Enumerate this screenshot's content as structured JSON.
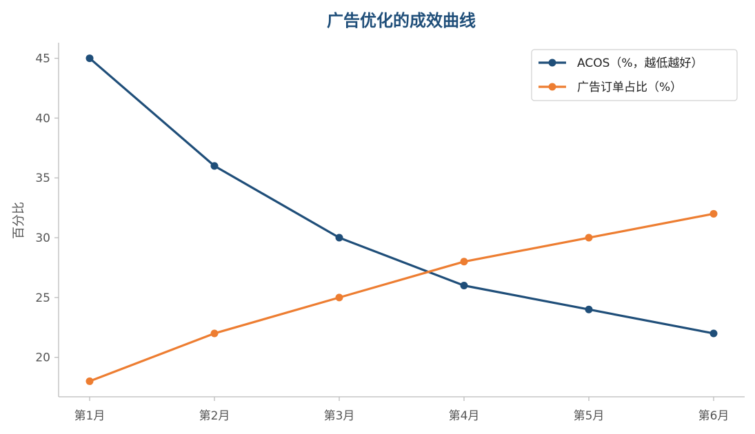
{
  "chart_data": {
    "type": "line",
    "title": "广告优化的成效曲线",
    "ylabel": "百分比",
    "xlabel": "",
    "categories": [
      "第1月",
      "第2月",
      "第3月",
      "第4月",
      "第5月",
      "第6月"
    ],
    "ylim": [
      16.7,
      46.3
    ],
    "yticks": [
      20,
      25,
      30,
      35,
      40,
      45
    ],
    "grid": false,
    "legend_position": "top-right",
    "series": [
      {
        "name": "ACOS（%，越低越好）",
        "values": [
          45,
          36,
          30,
          26,
          24,
          22
        ],
        "color": "#1f4e79"
      },
      {
        "name": "广告订单占比（%）",
        "values": [
          18,
          22,
          25,
          28,
          30,
          32
        ],
        "color": "#ed7d31"
      }
    ],
    "colors": {
      "title": "#1f4e79",
      "axis": "#bbbbbb"
    }
  }
}
